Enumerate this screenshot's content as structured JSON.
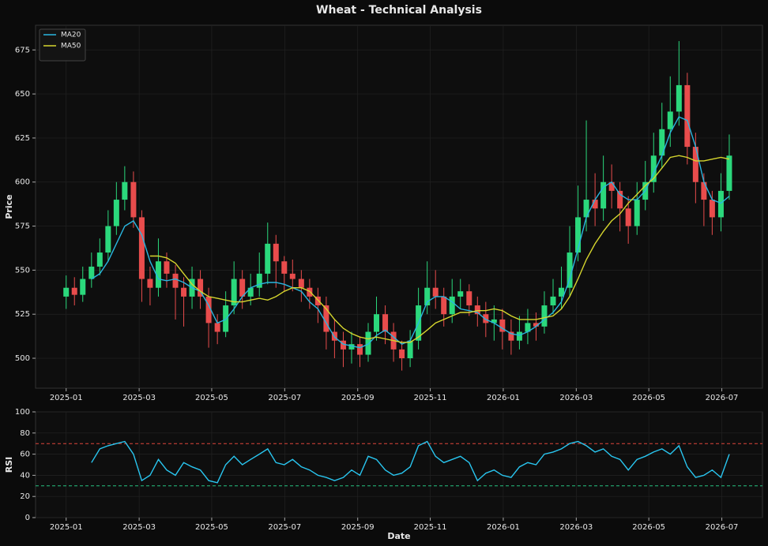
{
  "chart_data": [
    {
      "type": "candlestick",
      "title": "Wheat - Technical Analysis",
      "ylabel": "Price",
      "x": [
        2025.0,
        2025.019,
        2025.038,
        2025.058,
        2025.077,
        2025.096,
        2025.115,
        2025.134,
        2025.154,
        2025.173,
        2025.192,
        2025.211,
        2025.23,
        2025.25,
        2025.269,
        2025.288,
        2025.307,
        2025.326,
        2025.346,
        2025.365,
        2025.384,
        2025.403,
        2025.422,
        2025.442,
        2025.461,
        2025.48,
        2025.499,
        2025.518,
        2025.538,
        2025.557,
        2025.576,
        2025.595,
        2025.614,
        2025.634,
        2025.653,
        2025.672,
        2025.691,
        2025.71,
        2025.73,
        2025.749,
        2025.768,
        2025.787,
        2025.806,
        2025.826,
        2025.845,
        2025.864,
        2025.883,
        2025.902,
        2025.922,
        2025.941,
        2025.96,
        2025.979,
        2025.998,
        2026.018,
        2026.037,
        2026.056,
        2026.075,
        2026.094,
        2026.114,
        2026.133,
        2026.152,
        2026.171,
        2026.19,
        2026.21,
        2026.229,
        2026.248,
        2026.267,
        2026.286,
        2026.306,
        2026.325,
        2026.344,
        2026.363,
        2026.382,
        2026.402,
        2026.421,
        2026.44,
        2026.459,
        2026.478,
        2026.498,
        2026.517
      ],
      "open": [
        535,
        540,
        536,
        545,
        552,
        560,
        575,
        590,
        600,
        580,
        545,
        540,
        555,
        548,
        540,
        535,
        545,
        535,
        520,
        515,
        530,
        545,
        535,
        540,
        548,
        565,
        555,
        548,
        545,
        540,
        535,
        530,
        515,
        510,
        505,
        508,
        502,
        515,
        525,
        515,
        505,
        500,
        510,
        530,
        540,
        535,
        525,
        535,
        538,
        530,
        525,
        520,
        522,
        515,
        510,
        515,
        520,
        518,
        530,
        535,
        540,
        560,
        580,
        590,
        585,
        600,
        595,
        585,
        575,
        590,
        600,
        615,
        630,
        640,
        655,
        620,
        600,
        590,
        580,
        595
      ],
      "high": [
        547,
        546,
        552,
        560,
        568,
        584,
        600,
        609,
        606,
        584,
        552,
        568,
        560,
        553,
        546,
        552,
        550,
        540,
        525,
        538,
        555,
        550,
        548,
        560,
        577,
        570,
        558,
        556,
        550,
        545,
        540,
        535,
        522,
        515,
        515,
        512,
        520,
        535,
        530,
        520,
        510,
        516,
        540,
        555,
        550,
        540,
        545,
        545,
        542,
        535,
        532,
        530,
        528,
        522,
        524,
        528,
        526,
        538,
        545,
        552,
        575,
        598,
        635,
        605,
        615,
        610,
        600,
        592,
        600,
        612,
        628,
        645,
        660,
        680,
        662,
        628,
        605,
        595,
        605,
        627
      ],
      "low": [
        528,
        530,
        532,
        540,
        547,
        555,
        570,
        584,
        574,
        532,
        530,
        535,
        540,
        522,
        518,
        528,
        528,
        506,
        508,
        512,
        525,
        528,
        530,
        535,
        542,
        540,
        538,
        538,
        532,
        528,
        520,
        505,
        500,
        495,
        497,
        495,
        498,
        510,
        508,
        498,
        493,
        495,
        505,
        525,
        528,
        518,
        520,
        528,
        524,
        518,
        512,
        510,
        505,
        502,
        505,
        508,
        510,
        514,
        525,
        528,
        535,
        555,
        572,
        575,
        578,
        585,
        572,
        565,
        570,
        584,
        594,
        608,
        620,
        632,
        610,
        588,
        575,
        570,
        572,
        590
      ],
      "close": [
        540,
        536,
        545,
        552,
        560,
        575,
        590,
        600,
        580,
        545,
        540,
        555,
        548,
        540,
        535,
        545,
        535,
        520,
        515,
        530,
        545,
        535,
        540,
        548,
        565,
        555,
        548,
        545,
        540,
        535,
        530,
        515,
        510,
        505,
        508,
        502,
        515,
        525,
        515,
        505,
        500,
        510,
        530,
        540,
        535,
        525,
        535,
        538,
        530,
        525,
        520,
        522,
        515,
        510,
        515,
        520,
        518,
        530,
        535,
        540,
        560,
        580,
        590,
        585,
        600,
        595,
        585,
        575,
        590,
        600,
        615,
        630,
        640,
        655,
        620,
        600,
        590,
        580,
        595,
        615
      ],
      "up_color": "#2bd87c",
      "down_color": "#e84c4c",
      "series": [
        {
          "name": "MA20",
          "color": "#29b6e0",
          "values": [
            null,
            null,
            null,
            545,
            548,
            555,
            565,
            575,
            578,
            570,
            555,
            545,
            544,
            545,
            543,
            540,
            538,
            530,
            520,
            522,
            528,
            535,
            540,
            542,
            543,
            543,
            542,
            540,
            538,
            532,
            528,
            520,
            512,
            508,
            507,
            506,
            508,
            513,
            516,
            512,
            508,
            510,
            520,
            532,
            535,
            535,
            532,
            528,
            527,
            526,
            522,
            520,
            517,
            514,
            513,
            515,
            518,
            522,
            526,
            532,
            545,
            562,
            580,
            590,
            597,
            600,
            593,
            590,
            590,
            595,
            605,
            615,
            628,
            637,
            635,
            620,
            600,
            590,
            588,
            592
          ]
        },
        {
          "name": "MA50",
          "color": "#d6d62e",
          "values": [
            null,
            null,
            null,
            null,
            null,
            null,
            null,
            null,
            null,
            null,
            558,
            558,
            557,
            554,
            548,
            542,
            538,
            535,
            534,
            533,
            532,
            532,
            533,
            534,
            533,
            535,
            538,
            540,
            540,
            538,
            533,
            528,
            522,
            517,
            514,
            512,
            511,
            512,
            511,
            510,
            509,
            509,
            512,
            516,
            520,
            522,
            524,
            526,
            526,
            527,
            527,
            528,
            527,
            524,
            522,
            522,
            522,
            523,
            524,
            528,
            535,
            545,
            556,
            565,
            572,
            578,
            582,
            588,
            593,
            598,
            602,
            608,
            614,
            615,
            614,
            612,
            612,
            613,
            614,
            613
          ]
        }
      ],
      "xlim": [
        2024.93,
        2026.593
      ],
      "ylim": [
        483,
        689
      ],
      "xticks": [
        {
          "value": 2025.0,
          "label": "2025-01"
        },
        {
          "value": 2025.167,
          "label": "2025-03"
        },
        {
          "value": 2025.333,
          "label": "2025-05"
        },
        {
          "value": 2025.5,
          "label": "2025-07"
        },
        {
          "value": 2025.667,
          "label": "2025-09"
        },
        {
          "value": 2025.833,
          "label": "2025-11"
        },
        {
          "value": 2026.0,
          "label": "2026-01"
        },
        {
          "value": 2026.167,
          "label": "2026-03"
        },
        {
          "value": 2026.333,
          "label": "2026-05"
        },
        {
          "value": 2026.5,
          "label": "2026-07"
        }
      ],
      "yticks": [
        500,
        525,
        550,
        575,
        600,
        625,
        650,
        675
      ],
      "grid": true,
      "legend": "upper left"
    },
    {
      "type": "line",
      "ylabel": "RSI",
      "xlabel": "Date",
      "x": [
        2025.0,
        2025.019,
        2025.038,
        2025.058,
        2025.077,
        2025.096,
        2025.115,
        2025.134,
        2025.154,
        2025.173,
        2025.192,
        2025.211,
        2025.23,
        2025.25,
        2025.269,
        2025.288,
        2025.307,
        2025.326,
        2025.346,
        2025.365,
        2025.384,
        2025.403,
        2025.422,
        2025.442,
        2025.461,
        2025.48,
        2025.499,
        2025.518,
        2025.538,
        2025.557,
        2025.576,
        2025.595,
        2025.614,
        2025.634,
        2025.653,
        2025.672,
        2025.691,
        2025.71,
        2025.73,
        2025.749,
        2025.768,
        2025.787,
        2025.806,
        2025.826,
        2025.845,
        2025.864,
        2025.883,
        2025.902,
        2025.922,
        2025.941,
        2025.96,
        2025.979,
        2025.998,
        2026.018,
        2026.037,
        2026.056,
        2026.075,
        2026.094,
        2026.114,
        2026.133,
        2026.152,
        2026.171,
        2026.19,
        2026.21,
        2026.229,
        2026.248,
        2026.267,
        2026.286,
        2026.306,
        2026.325,
        2026.344,
        2026.363,
        2026.382,
        2026.402,
        2026.421,
        2026.44,
        2026.459,
        2026.478,
        2026.498,
        2026.517
      ],
      "values": [
        null,
        null,
        null,
        52,
        65,
        68,
        70,
        72,
        60,
        35,
        40,
        55,
        45,
        40,
        52,
        48,
        45,
        35,
        33,
        50,
        58,
        50,
        55,
        60,
        65,
        52,
        50,
        55,
        48,
        45,
        40,
        38,
        35,
        38,
        45,
        40,
        58,
        55,
        45,
        40,
        42,
        48,
        68,
        72,
        58,
        52,
        55,
        58,
        52,
        35,
        42,
        45,
        40,
        38,
        48,
        52,
        50,
        60,
        62,
        65,
        70,
        72,
        68,
        62,
        65,
        58,
        55,
        45,
        55,
        58,
        62,
        65,
        60,
        68,
        48,
        38,
        40,
        45,
        38,
        60
      ],
      "color": "#29c6f0",
      "hlines": [
        {
          "value": 70,
          "color": "#e0453a"
        },
        {
          "value": 30,
          "color": "#26c281"
        }
      ],
      "xlim": [
        2024.93,
        2026.593
      ],
      "ylim": [
        0,
        100
      ],
      "xticks": [
        {
          "value": 2025.0,
          "label": "2025-01"
        },
        {
          "value": 2025.167,
          "label": "2025-03"
        },
        {
          "value": 2025.333,
          "label": "2025-05"
        },
        {
          "value": 2025.5,
          "label": "2025-07"
        },
        {
          "value": 2025.667,
          "label": "2025-09"
        },
        {
          "value": 2025.833,
          "label": "2025-11"
        },
        {
          "value": 2026.0,
          "label": "2026-01"
        },
        {
          "value": 2026.167,
          "label": "2026-03"
        },
        {
          "value": 2026.333,
          "label": "2026-05"
        },
        {
          "value": 2026.5,
          "label": "2026-07"
        }
      ],
      "yticks": [
        0,
        20,
        40,
        60,
        80,
        100
      ],
      "grid": true
    }
  ]
}
